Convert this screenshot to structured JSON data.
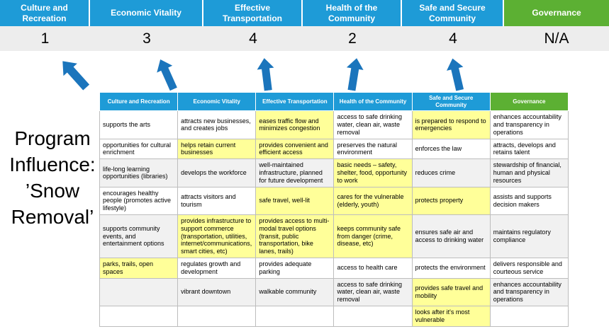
{
  "scorecard": {
    "columns": [
      {
        "label": "Culture and Recreation",
        "score": "1",
        "theme": "blue"
      },
      {
        "label": "Economic Vitality",
        "score": "3",
        "theme": "blue"
      },
      {
        "label": "Effective Transportation",
        "score": "4",
        "theme": "blue"
      },
      {
        "label": "Health of the Community",
        "score": "2",
        "theme": "blue"
      },
      {
        "label": "Safe and Secure Community",
        "score": "4",
        "theme": "blue"
      },
      {
        "label": "Governance",
        "score": "N/A",
        "theme": "green"
      }
    ]
  },
  "program_label": "Program\nInfluence:\n’Snow\nRemoval’",
  "arrows": {
    "icon": "up-arrow-icon",
    "count": 5
  },
  "matrix": {
    "headers": [
      {
        "label": "Culture and Recreation",
        "theme": "blue"
      },
      {
        "label": "Economic Vitality",
        "theme": "blue"
      },
      {
        "label": "Effective Transportation",
        "theme": "blue"
      },
      {
        "label": "Health of the Community",
        "theme": "blue"
      },
      {
        "label": "Safe and Secure Community",
        "theme": "blue"
      },
      {
        "label": "Governance",
        "theme": "green"
      }
    ],
    "rows": [
      [
        {
          "text": "supports the arts",
          "highlight": false
        },
        {
          "text": "attracts new businesses, and creates jobs",
          "highlight": false
        },
        {
          "text": "eases traffic flow and minimizes congestion",
          "highlight": true
        },
        {
          "text": "access to safe drinking water, clean air, waste removal",
          "highlight": false
        },
        {
          "text": "is prepared to respond to emergencies",
          "highlight": true
        },
        {
          "text": "enhances accountability and transparency in operations",
          "highlight": false
        }
      ],
      [
        {
          "text": "opportunities for cultural enrichment",
          "highlight": false
        },
        {
          "text": "helps retain current businesses",
          "highlight": true
        },
        {
          "text": "provides convenient and efficient access",
          "highlight": true
        },
        {
          "text": "preserves the natural environment",
          "highlight": false
        },
        {
          "text": "enforces the law",
          "highlight": false
        },
        {
          "text": "attracts, develops and retains talent",
          "highlight": false
        }
      ],
      [
        {
          "text": "life-long learning opportunities (libraries)",
          "highlight": false
        },
        {
          "text": "develops the workforce",
          "highlight": false
        },
        {
          "text": "well-maintained infrastructure, planned for future development",
          "highlight": false
        },
        {
          "text": "basic needs – safety, shelter, food, opportunity to work",
          "highlight": true
        },
        {
          "text": "reduces crime",
          "highlight": false
        },
        {
          "text": "stewardship of financial, human and physical resources",
          "highlight": false
        }
      ],
      [
        {
          "text": "encourages healthy people (promotes active lifestyle)",
          "highlight": false
        },
        {
          "text": "attracts visitors and tourism",
          "highlight": false
        },
        {
          "text": "safe travel, well-lit",
          "highlight": true
        },
        {
          "text": "cares for the vulnerable (elderly, youth)",
          "highlight": true
        },
        {
          "text": "protects property",
          "highlight": true
        },
        {
          "text": "assists and supports decision makers",
          "highlight": false
        }
      ],
      [
        {
          "text": "supports community events, and entertainment options",
          "highlight": false
        },
        {
          "text": "provides infrastructure to support commerce (transportation, utilities, internet/communications, smart cities, etc)",
          "highlight": true
        },
        {
          "text": "provides access to multi-modal travel options (transit, public transportation, bike lanes, trails)",
          "highlight": true
        },
        {
          "text": "keeps community safe from danger (crime, disease, etc)",
          "highlight": true
        },
        {
          "text": "ensures safe air and access to drinking water",
          "highlight": false
        },
        {
          "text": "maintains regulatory compliance",
          "highlight": false
        }
      ],
      [
        {
          "text": "parks, trails, open spaces",
          "highlight": true
        },
        {
          "text": "regulates growth and development",
          "highlight": false
        },
        {
          "text": "provides adequate parking",
          "highlight": false
        },
        {
          "text": "access to health care",
          "highlight": false
        },
        {
          "text": "protects the environment",
          "highlight": false
        },
        {
          "text": "delivers responsible and courteous service",
          "highlight": false
        }
      ],
      [
        {
          "text": "",
          "highlight": false
        },
        {
          "text": "vibrant downtown",
          "highlight": false
        },
        {
          "text": "walkable community",
          "highlight": false
        },
        {
          "text": "access to safe drinking water, clean air, waste removal",
          "highlight": false
        },
        {
          "text": "provides safe travel and mobility",
          "highlight": true
        },
        {
          "text": "enhances accountability and transparency in operations",
          "highlight": false
        }
      ],
      [
        {
          "text": "",
          "highlight": false
        },
        {
          "text": "",
          "highlight": false
        },
        {
          "text": "",
          "highlight": false
        },
        {
          "text": "",
          "highlight": false
        },
        {
          "text": "looks after it's most vulnerable",
          "highlight": true
        },
        {
          "text": "",
          "highlight": false
        }
      ]
    ]
  },
  "colors": {
    "header_blue": "#1E9BD7",
    "header_green": "#5CB033",
    "score_band_bg": "#EDEDED",
    "highlight_yellow": "#FFFF99",
    "arrow_blue": "#1B75BC"
  }
}
